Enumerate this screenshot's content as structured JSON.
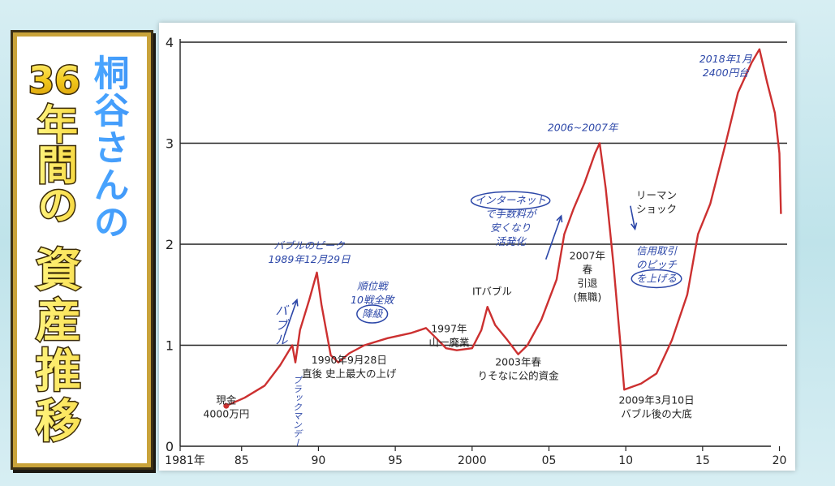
{
  "title": {
    "line1": "桐谷さんの",
    "line2_number": "36",
    "line2_rest": "年間の",
    "line3": "資産推移"
  },
  "chart_data": {
    "type": "line",
    "y_ticks": [
      "0",
      "1",
      "2",
      "3",
      "4"
    ],
    "ylim": [
      0,
      4
    ],
    "xlim": [
      1981,
      2020.5
    ],
    "grid": "horizontal",
    "x_ticks": [
      {
        "value": 1981,
        "label": "1981年"
      },
      {
        "value": 1985,
        "label": "85"
      },
      {
        "value": 1990,
        "label": "90"
      },
      {
        "value": 1995,
        "label": "95"
      },
      {
        "value": 2000,
        "label": "2000"
      },
      {
        "value": 2005,
        "label": "05"
      },
      {
        "value": 2010,
        "label": "10"
      },
      {
        "value": 2015,
        "label": "15"
      },
      {
        "value": 2020,
        "label": "20"
      }
    ],
    "series": [
      {
        "color": "#cc3030",
        "points": [
          [
            1984.0,
            0.4
          ],
          [
            1985.2,
            0.48
          ],
          [
            1986.5,
            0.6
          ],
          [
            1987.5,
            0.8
          ],
          [
            1988.3,
            1.0
          ],
          [
            1988.5,
            0.83
          ],
          [
            1988.8,
            1.15
          ],
          [
            1989.4,
            1.45
          ],
          [
            1989.9,
            1.72
          ],
          [
            1990.2,
            1.4
          ],
          [
            1990.8,
            0.9
          ],
          [
            1991.3,
            0.83
          ],
          [
            1992.0,
            0.92
          ],
          [
            1993.0,
            1.0
          ],
          [
            1994.5,
            1.07
          ],
          [
            1996.0,
            1.12
          ],
          [
            1997.0,
            1.17
          ],
          [
            1997.8,
            1.05
          ],
          [
            1998.3,
            0.97
          ],
          [
            1999.0,
            0.95
          ],
          [
            2000.0,
            0.97
          ],
          [
            2000.6,
            1.15
          ],
          [
            2001.0,
            1.38
          ],
          [
            2001.5,
            1.2
          ],
          [
            2002.3,
            1.05
          ],
          [
            2003.0,
            0.91
          ],
          [
            2003.6,
            1.0
          ],
          [
            2004.5,
            1.25
          ],
          [
            2005.5,
            1.65
          ],
          [
            2006.0,
            2.1
          ],
          [
            2006.6,
            2.35
          ],
          [
            2007.3,
            2.6
          ],
          [
            2008.0,
            2.9
          ],
          [
            2008.3,
            3.0
          ],
          [
            2008.7,
            2.55
          ],
          [
            2009.2,
            1.8
          ],
          [
            2009.6,
            1.1
          ],
          [
            2009.9,
            0.56
          ],
          [
            2011.0,
            0.62
          ],
          [
            2012.0,
            0.72
          ],
          [
            2013.0,
            1.05
          ],
          [
            2014.0,
            1.5
          ],
          [
            2014.7,
            2.1
          ],
          [
            2015.5,
            2.4
          ],
          [
            2016.5,
            3.0
          ],
          [
            2017.3,
            3.5
          ],
          [
            2018.2,
            3.8
          ],
          [
            2018.7,
            3.93
          ],
          [
            2019.2,
            3.6
          ],
          [
            2019.7,
            3.3
          ],
          [
            2020.0,
            2.9
          ],
          [
            2020.1,
            2.3
          ]
        ]
      }
    ],
    "annotations": [
      {
        "key": "genkin",
        "x": 1984.0,
        "y": 0.42,
        "lines": [
          "現金",
          "4000万円"
        ],
        "color": "black"
      },
      {
        "key": "bubble",
        "x": 1987.2,
        "y": 1.3,
        "lines": [
          "バ",
          "ブ",
          "ル"
        ],
        "color": "blue"
      },
      {
        "key": "peak",
        "x": 1989.4,
        "y": 1.95,
        "lines": [
          "バブルのピーク",
          "1989年12月29日"
        ],
        "color": "blue"
      },
      {
        "key": "black_monday",
        "x": 1988.6,
        "y": 0.7,
        "lines": [
          "ブラックマンデー"
        ],
        "color": "blue"
      },
      {
        "key": "date1990",
        "x": 1992.0,
        "y": 0.82,
        "lines": [
          "1990年9月28日",
          "直後 史上最大の上げ"
        ],
        "color": "black"
      },
      {
        "key": "shogi",
        "x": 1993.5,
        "y": 1.55,
        "lines": [
          "順位戦",
          "10戦全敗",
          "降級"
        ],
        "color": "blue"
      },
      {
        "key": "y1997",
        "x": 1998.5,
        "y": 1.13,
        "lines": [
          "1997年",
          "山一廃業"
        ],
        "color": "black"
      },
      {
        "key": "it_bubble",
        "x": 2001.3,
        "y": 1.5,
        "lines": [
          "ITバブル"
        ],
        "color": "black"
      },
      {
        "key": "internet",
        "x": 2002.5,
        "y": 2.4,
        "lines": [
          "インターネット",
          "で手数料が",
          "安くなり",
          "活発化"
        ],
        "color": "blue"
      },
      {
        "key": "y2003",
        "x": 2003.0,
        "y": 0.8,
        "lines": [
          "2003年春",
          "りそなに公的資金"
        ],
        "color": "black"
      },
      {
        "key": "y2006",
        "x": 2007.2,
        "y": 3.12,
        "lines": [
          "2006~2007年"
        ],
        "color": "blue"
      },
      {
        "key": "inntai",
        "x": 2007.5,
        "y": 1.85,
        "lines": [
          "2007年",
          "春",
          "引退",
          "(無職)"
        ],
        "color": "black"
      },
      {
        "key": "lehman",
        "x": 2012.0,
        "y": 2.45,
        "lines": [
          "リーマン",
          "ショック"
        ],
        "color": "black"
      },
      {
        "key": "shinyo",
        "x": 2012.0,
        "y": 1.9,
        "lines": [
          "信用取引",
          "のピッチ",
          "を上げる"
        ],
        "color": "blue"
      },
      {
        "key": "y2009",
        "x": 2012.0,
        "y": 0.42,
        "lines": [
          "2009年3月10日",
          "バブル後の大底"
        ],
        "color": "black"
      },
      {
        "key": "y2018",
        "x": 2016.5,
        "y": 3.8,
        "lines": [
          "2018年1月",
          "2400円台"
        ],
        "color": "blue"
      }
    ]
  }
}
